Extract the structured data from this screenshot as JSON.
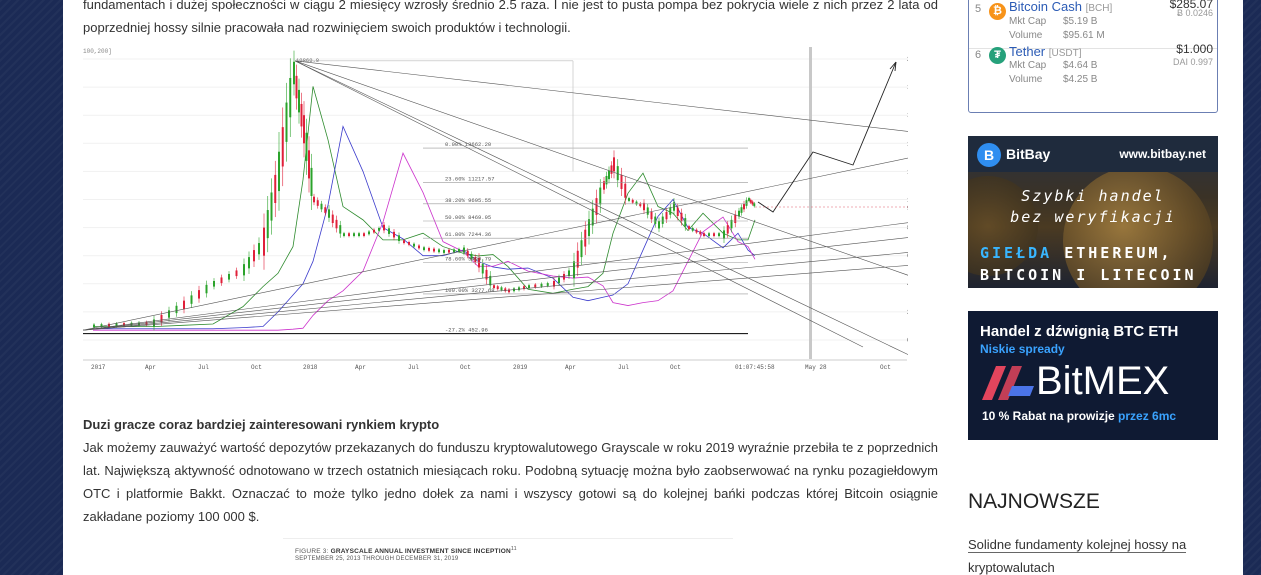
{
  "article": {
    "top_paragraph": "fundamentach i dużej społeczności w ciągu 2 miesięcy wzrosły średnio 2.5 raza. I nie jest to pusta pompa bez pokrycia wiele z nich przez 2 lata od poprzedniej hossy silnie pracowała nad rozwinięciem swoich produktów i technologii.",
    "section_heading": "Duzi gracze coraz bardziej zainteresowani rynkiem krypto",
    "section_paragraph": "Jak możemy zauważyć wartość depozytów przekazanych do funduszu kryptowalutowego Grayscale w roku 2019 wyraźnie przebiła te z poprzednich lat. Największą aktywność odnotowano w trzech ostatnich miesiącach roku. Podobną sytuację można było zaobserwować na rynku pozagiełdowym OTC i platformie Bakkt. Oznaczać to może tylko jedno dołek za nami i wszyscy gotowi są do kolejnej bańki podczas której Bitcoin osiągnie zakładane poziomy 100 000 $.",
    "figure_caption_prefix": "FIGURE 3: ",
    "figure_caption_title": "GRAYSCALE ANNUAL INVESTMENT SINCE INCEPTION",
    "figure_caption_sup": "11",
    "figure_caption_dates": "SEPTEMBER 25, 2013 THROUGH DECEMBER 31, 2019"
  },
  "chart_data": {
    "type": "candlestick",
    "corner_label": "100,200]",
    "peak_label": "19869.0",
    "x_ticks": [
      "2017",
      "Apr",
      "Jul",
      "Oct",
      "2018",
      "Apr",
      "Jul",
      "Oct",
      "2019",
      "Apr",
      "Jul",
      "Oct",
      "01:07:45:58",
      "May 28",
      "Oct"
    ],
    "y_ticks": [
      20000,
      18000,
      16000,
      14000,
      12000,
      10000,
      8000,
      6000,
      4000,
      2000,
      0
    ],
    "current_price_label": "9467.3",
    "fib_levels": [
      {
        "label": "0.00%",
        "value": "13662.20"
      },
      {
        "label": "23.60%",
        "value": "11217.57"
      },
      {
        "label": "38.20%",
        "value": "9695.55"
      },
      {
        "label": "50.00%",
        "value": "8469.95"
      },
      {
        "label": "61.80%",
        "value": "7244.36"
      },
      {
        "label": "78.60%",
        "value": "5499.79"
      },
      {
        "label": "100.00%",
        "value": "3277.68"
      },
      {
        "label": "-27.2%",
        "value": "452.96"
      }
    ]
  },
  "sidebar": {
    "coins": [
      {
        "rank": "5",
        "icon": "bitcoin-cash-icon",
        "icon_glyph": "₿",
        "icon_color": "#f7931a",
        "name": "Bitcoin Cash",
        "symbol": "[BCH]",
        "mkt_cap_label": "Mkt Cap",
        "mkt_cap": "$5.19 B",
        "volume_label": "Volume",
        "volume": "$95.61 M",
        "price": "$285.07",
        "btc_price": "Ƀ 0.0246"
      },
      {
        "rank": "6",
        "icon": "tether-icon",
        "icon_glyph": "₮",
        "icon_color": "#26a17b",
        "name": "Tether",
        "symbol": "[USDT]",
        "mkt_cap_label": "Mkt Cap",
        "mkt_cap": "$4.64 B",
        "volume_label": "Volume",
        "volume": "$4.25 B",
        "price": "$1.000",
        "btc_price": "DAI 0.997"
      }
    ],
    "ad_bitbay": {
      "logo_glyph": "B",
      "logo_text": "BitBay",
      "url": "www.bitbay.net",
      "slogan_line1": "Szybki handel",
      "slogan_line2": "bez weryfikacji",
      "big_line1_accent": "GIEŁDA",
      "big_line1_rest": " ETHEREUM,",
      "big_line2": "BITCOIN I LITECOIN"
    },
    "ad_bitmex": {
      "title": "Handel z dźwignią BTC ETH",
      "subtitle": "Niskie spready",
      "brand": "BitMEX",
      "promo": "10 % Rabat na prowizje",
      "promo_accent": " przez 6mc"
    },
    "najnowsze_heading": "NAJNOWSZE",
    "latest_post": "Solidne fundamenty kolejnej hossy na kryptowalutach"
  }
}
